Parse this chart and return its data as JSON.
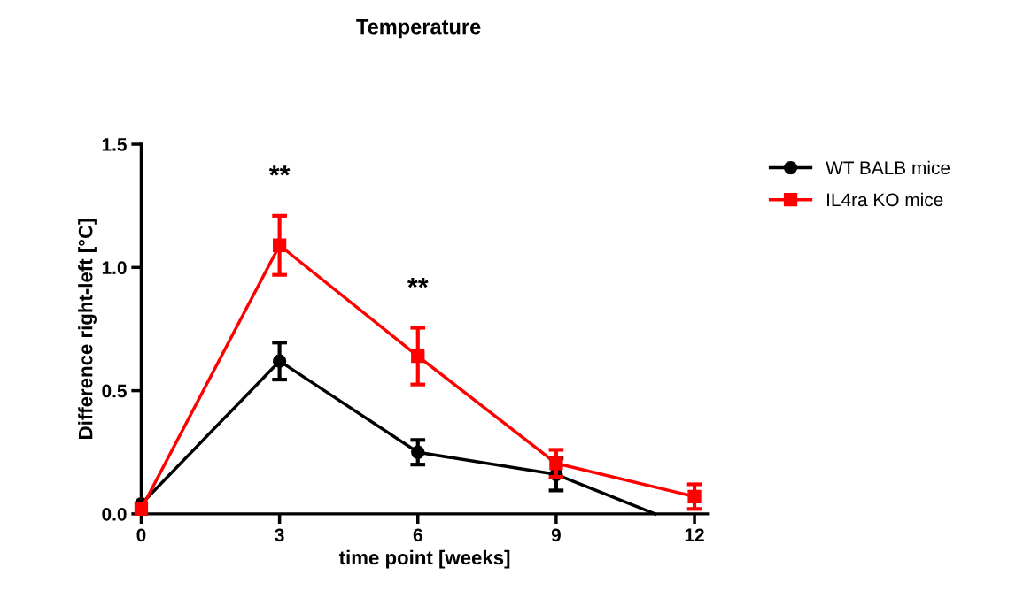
{
  "chart_data": {
    "type": "line",
    "title": "Temperature",
    "xlabel": "time point [weeks]",
    "ylabel": "Difference right-left [°C]",
    "x": [
      0,
      3,
      6,
      9,
      12
    ],
    "series": [
      {
        "name": "WT BALB mice",
        "color": "#000000",
        "marker": "circle",
        "x": [
          0,
          3,
          6,
          9,
          11.15
        ],
        "values": [
          0.04,
          0.62,
          0.25,
          0.16,
          0
        ],
        "errors": [
          null,
          0.075,
          0.05,
          0.065,
          null
        ]
      },
      {
        "name": "IL4ra KO mice",
        "color": "#ff0000",
        "marker": "square",
        "values": [
          0.02,
          1.09,
          0.64,
          0.205,
          0.07
        ],
        "errors": [
          null,
          0.12,
          0.115,
          0.055,
          0.05
        ]
      }
    ],
    "annotations": [
      "**",
      "**"
    ],
    "xlim": [
      0,
      12.3
    ],
    "ylim": [
      0,
      1.5
    ],
    "xticks": [
      0,
      3,
      6,
      9,
      12
    ],
    "yticks": [
      {
        "value": 0,
        "label": "0.0"
      },
      {
        "value": 0.5,
        "label": "0.5"
      },
      {
        "value": 1.0,
        "label": "1.0"
      },
      {
        "value": 1.5,
        "label": "1.5"
      }
    ],
    "grid": false,
    "legend": "top right",
    "line_style": "solid"
  }
}
